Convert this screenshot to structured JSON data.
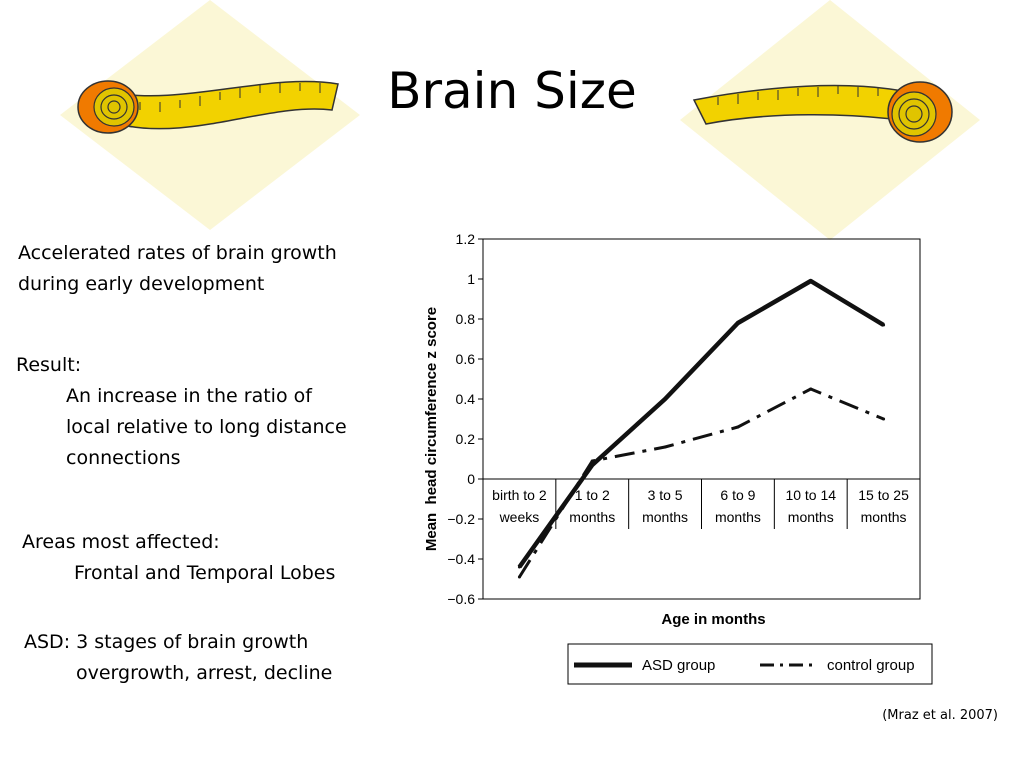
{
  "slide": {
    "title": "Brain Size",
    "bullets": {
      "growth_line1": "Accelerated rates of brain growth",
      "growth_line2": "during early development",
      "result_heading": "Result:",
      "result_line1": "An increase in the ratio of",
      "result_line2": "local relative to long distance",
      "result_line3": "connections",
      "areas_heading": "Areas most affected:",
      "areas_value": "Frontal and Temporal Lobes",
      "asd_heading": "ASD: 3 stages of brain growth",
      "asd_value": "overgrowth, arrest, decline"
    },
    "citation": "(Mraz et al. 2007)",
    "colors": {
      "tape_yellow": "#f2d200",
      "tape_orange": "#f07a00",
      "diamond": "#fbf7d6"
    },
    "icons": [
      "measuring-tape-left-icon",
      "measuring-tape-right-icon"
    ]
  },
  "chart_data": {
    "type": "line",
    "xlabel": "Age in months",
    "ylabel": "Mean  head circumference z score",
    "ylim": [
      -0.6,
      1.2
    ],
    "yticks": [
      1.2,
      1,
      0.8,
      0.6,
      0.4,
      0.2,
      0,
      -0.2,
      -0.4,
      -0.6
    ],
    "ytick_labels": [
      "1.2",
      "1",
      "0.8",
      "0.6",
      "0.4",
      "0.2",
      "0",
      "−0.2",
      "−0.4",
      "−0.6"
    ],
    "categories": [
      [
        "birth to 2",
        "weeks"
      ],
      [
        "1 to 2",
        "months"
      ],
      [
        "3 to 5",
        "months"
      ],
      [
        "6 to 9",
        "months"
      ],
      [
        "10 to 14",
        "months"
      ],
      [
        "15 to 25",
        "months"
      ]
    ],
    "series": [
      {
        "name": "ASD group",
        "style": "solid",
        "values": [
          -0.44,
          0.07,
          0.4,
          0.78,
          0.99,
          0.77
        ]
      },
      {
        "name": "control group",
        "style": "dashdot",
        "values": [
          -0.49,
          0.09,
          0.16,
          0.26,
          0.45,
          0.3
        ]
      }
    ],
    "legend_position": "bottom"
  }
}
